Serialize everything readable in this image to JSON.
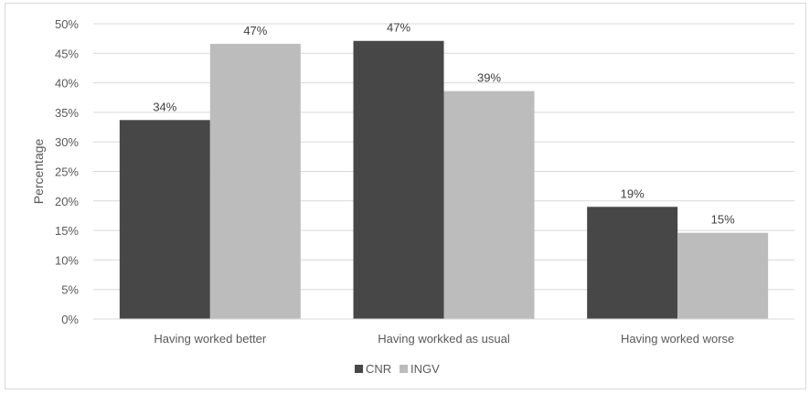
{
  "chart_data": {
    "type": "bar",
    "title": "",
    "xlabel": "",
    "ylabel": "Percentage",
    "ylim": [
      0,
      50
    ],
    "y_tick_step": 5,
    "y_tick_suffix": "%",
    "grid": true,
    "legend_position": "bottom",
    "categories": [
      "Having worked better",
      "Having workked as usual",
      "Having worked worse"
    ],
    "series": [
      {
        "name": "CNR",
        "color": "#474747",
        "values": [
          33.7,
          47.1,
          19.0
        ],
        "labels": [
          "34%",
          "47%",
          "19%"
        ]
      },
      {
        "name": "INGV",
        "color": "#bcbcbc",
        "values": [
          46.6,
          38.6,
          14.6
        ],
        "labels": [
          "47%",
          "39%",
          "15%"
        ]
      }
    ]
  }
}
